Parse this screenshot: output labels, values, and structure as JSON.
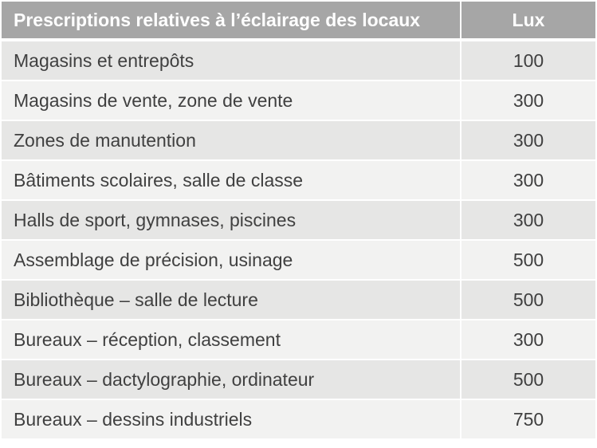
{
  "table": {
    "header": {
      "label": "Prescriptions relatives à l’éclairage des locaux",
      "value": "Lux"
    },
    "rows": [
      {
        "label": "Magasins et entrepôts",
        "value": "100"
      },
      {
        "label": "Magasins de vente, zone de vente",
        "value": "300"
      },
      {
        "label": "Zones de manutention",
        "value": "300"
      },
      {
        "label": "Bâtiments scolaires, salle de classe",
        "value": "300"
      },
      {
        "label": "Halls de sport, gymnases, piscines",
        "value": "300"
      },
      {
        "label": "Assemblage de précision, usinage",
        "value": "500"
      },
      {
        "label": "Bibliothèque – salle de lecture",
        "value": "500"
      },
      {
        "label": "Bureaux – réception, classement",
        "value": "300"
      },
      {
        "label": "Bureaux – dactylographie, ordinateur",
        "value": "500"
      },
      {
        "label": "Bureaux – dessins industriels",
        "value": "750"
      }
    ],
    "colors": {
      "header_bg": "#a6a6a6",
      "header_text": "#ffffff",
      "row_odd_bg": "#e6e6e5",
      "row_even_bg": "#f2f2f1",
      "body_text": "#404040"
    }
  }
}
